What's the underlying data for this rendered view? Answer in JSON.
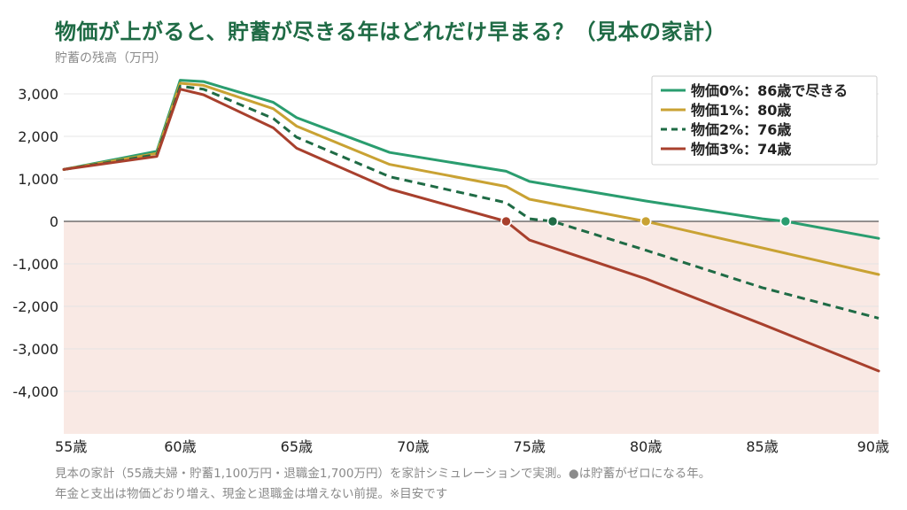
{
  "title": "物価が上がると、貯蓄が尽きる年はどれだけ早まる？（見本の家計）",
  "unit_label": "貯蓄の残高（万円）",
  "notes": [
    "見本の家計（55歳夫婦・貯蓄1,100万円・退職金1,700万円）を家計シミュレーションで実測。●は貯蓄がゼロになる年。",
    "年金と支出は物価どおり増え、現金と退職金は増えない前提。※目安です"
  ],
  "chart_data": {
    "type": "line",
    "title": "物価が上がると、貯蓄が尽きる年はどれだけ早まる？（見本の家計）",
    "ylabel": "貯蓄の残高（万円）",
    "xlabel": "",
    "xlim": [
      55,
      90
    ],
    "ylim": [
      -5000,
      3500
    ],
    "x_ticks": [
      55,
      60,
      65,
      70,
      75,
      80,
      85,
      90
    ],
    "x_tick_labels": [
      "55歳",
      "60歳",
      "65歳",
      "70歳",
      "75歳",
      "80歳",
      "85歳",
      "90歳"
    ],
    "y_ticks": [
      3000,
      2000,
      1000,
      0,
      -1000,
      -2000,
      -3000,
      -4000
    ],
    "y_tick_labels": [
      "3,000",
      "2,000",
      "1,000",
      "0",
      "-1,000",
      "-2,000",
      "-3,000",
      "-4,000"
    ],
    "grid": true,
    "negative_region_shaded": true,
    "legend_position": "top-right",
    "series": [
      {
        "name": "物価0%：86歳で尽きる",
        "color": "#2a9d6f",
        "dash": "solid",
        "depletion_age": 86,
        "points": [
          [
            55,
            1220
          ],
          [
            59,
            1650
          ],
          [
            60,
            3320
          ],
          [
            61,
            3290
          ],
          [
            64,
            2800
          ],
          [
            65,
            2440
          ],
          [
            69,
            1620
          ],
          [
            74,
            1180
          ],
          [
            75,
            940
          ],
          [
            80,
            480
          ],
          [
            85,
            60
          ],
          [
            86,
            0
          ],
          [
            90,
            -400
          ]
        ]
      },
      {
        "name": "物価1%：80歳",
        "color": "#c9a233",
        "dash": "solid",
        "depletion_age": 80,
        "points": [
          [
            55,
            1220
          ],
          [
            59,
            1600
          ],
          [
            60,
            3250
          ],
          [
            61,
            3200
          ],
          [
            64,
            2650
          ],
          [
            65,
            2240
          ],
          [
            69,
            1340
          ],
          [
            74,
            820
          ],
          [
            75,
            520
          ],
          [
            80,
            0
          ],
          [
            90,
            -1250
          ]
        ]
      },
      {
        "name": "物価2%：76歳",
        "color": "#1f6b45",
        "dash": "dashed",
        "depletion_age": 76,
        "points": [
          [
            55,
            1220
          ],
          [
            59,
            1570
          ],
          [
            60,
            3180
          ],
          [
            61,
            3110
          ],
          [
            64,
            2420
          ],
          [
            65,
            1980
          ],
          [
            69,
            1050
          ],
          [
            74,
            440
          ],
          [
            75,
            60
          ],
          [
            76,
            0
          ],
          [
            80,
            -680
          ],
          [
            85,
            -1560
          ],
          [
            90,
            -2280
          ]
        ]
      },
      {
        "name": "物価3%：74歳",
        "color": "#a8402d",
        "dash": "solid",
        "depletion_age": 74,
        "points": [
          [
            55,
            1220
          ],
          [
            59,
            1530
          ],
          [
            60,
            3110
          ],
          [
            61,
            2980
          ],
          [
            64,
            2200
          ],
          [
            65,
            1720
          ],
          [
            69,
            760
          ],
          [
            74,
            0
          ],
          [
            75,
            -440
          ],
          [
            80,
            -1350
          ],
          [
            85,
            -2420
          ],
          [
            90,
            -3520
          ]
        ]
      }
    ]
  }
}
